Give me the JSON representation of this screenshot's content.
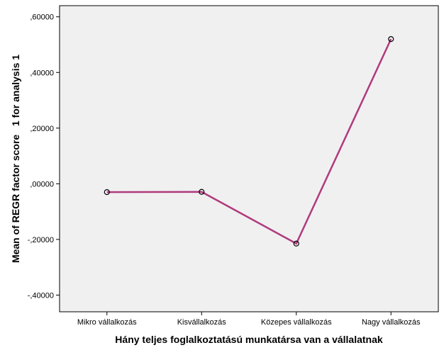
{
  "chart_data": {
    "type": "line",
    "categories": [
      "Mikro vállalkozás",
      "Kisvállalkozás",
      "Közepes vállalkozás",
      "Nagy vállalkozás"
    ],
    "values": [
      -0.03,
      -0.029,
      -0.215,
      0.52
    ],
    "xlabel": "Hány teljes foglalkoztatású munkatársa van a vállalatnak",
    "ylabel": "Mean of REGR factor score   1 for analysis 1",
    "ylim": [
      -0.46,
      0.64
    ],
    "yticks": [
      -0.4,
      -0.2,
      0.0,
      0.2,
      0.4,
      0.6
    ],
    "ytick_labels": [
      "-,40000",
      "-,20000",
      ",00000",
      ",20000",
      ",40000",
      ",60000"
    ],
    "grid": false,
    "colors": {
      "line": "#b03a7d",
      "plot_background": "#f0f0f0",
      "marker_edge": "#000000"
    }
  }
}
